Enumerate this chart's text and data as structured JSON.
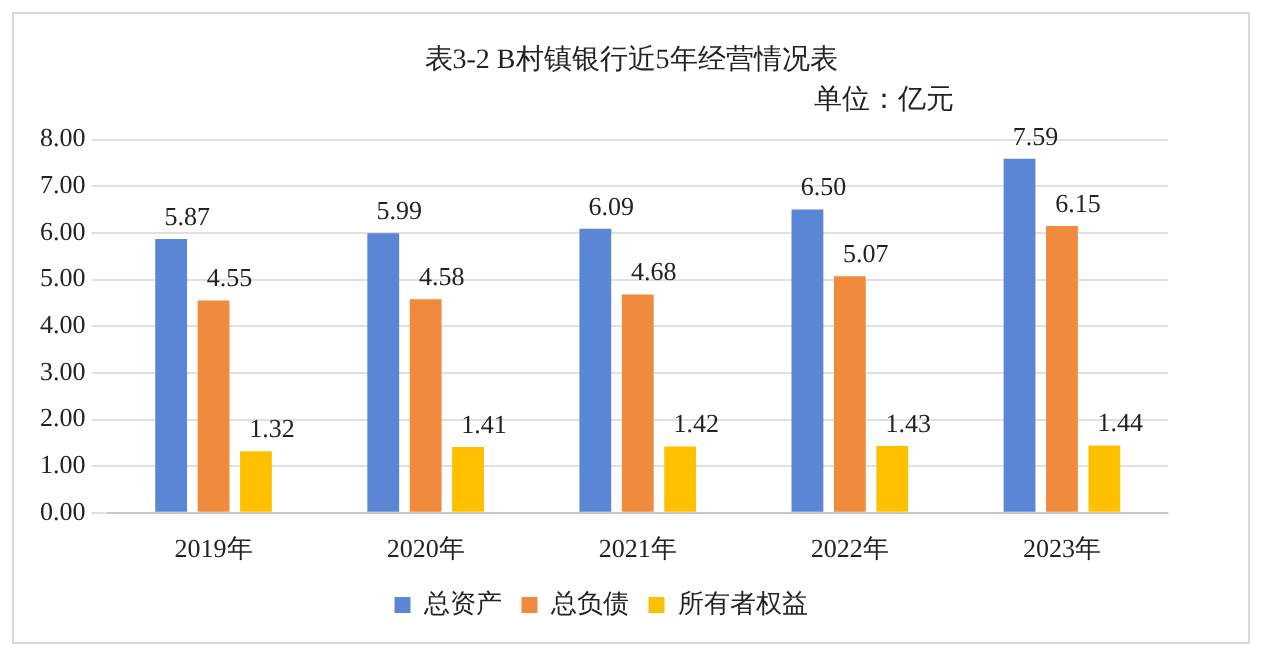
{
  "chart_data": {
    "type": "bar",
    "title": "表3-2 B村镇银行近5年经营情况表",
    "subtitle": "单位：亿元",
    "categories": [
      "2019年",
      "2020年",
      "2021年",
      "2022年",
      "2023年"
    ],
    "series": [
      {
        "name": "总资产",
        "color": "#5b86d6",
        "values": [
          5.87,
          5.99,
          6.09,
          6.5,
          7.59
        ],
        "value_labels": [
          "5.87",
          "5.99",
          "6.09",
          "6.50",
          "7.59"
        ]
      },
      {
        "name": "总负债",
        "color": "#f08a3c",
        "values": [
          4.55,
          4.58,
          4.68,
          5.07,
          6.15
        ],
        "value_labels": [
          "4.55",
          "4.58",
          "4.68",
          "5.07",
          "6.15"
        ]
      },
      {
        "name": "所有者权益",
        "color": "#ffc000",
        "values": [
          1.32,
          1.41,
          1.42,
          1.43,
          1.44
        ],
        "value_labels": [
          "1.32",
          "1.41",
          "1.42",
          "1.43",
          "1.44"
        ]
      }
    ],
    "ylim": [
      0,
      8
    ],
    "yticks": [
      {
        "value": 0,
        "label": "0.00"
      },
      {
        "value": 1,
        "label": "1.00"
      },
      {
        "value": 2,
        "label": "2.00"
      },
      {
        "value": 3,
        "label": "3.00"
      },
      {
        "value": 4,
        "label": "4.00"
      },
      {
        "value": 5,
        "label": "5.00"
      },
      {
        "value": 6,
        "label": "6.00"
      },
      {
        "value": 7,
        "label": "7.00"
      },
      {
        "value": 8,
        "label": "8.00"
      }
    ],
    "grid": "y",
    "legend": "bottom"
  }
}
